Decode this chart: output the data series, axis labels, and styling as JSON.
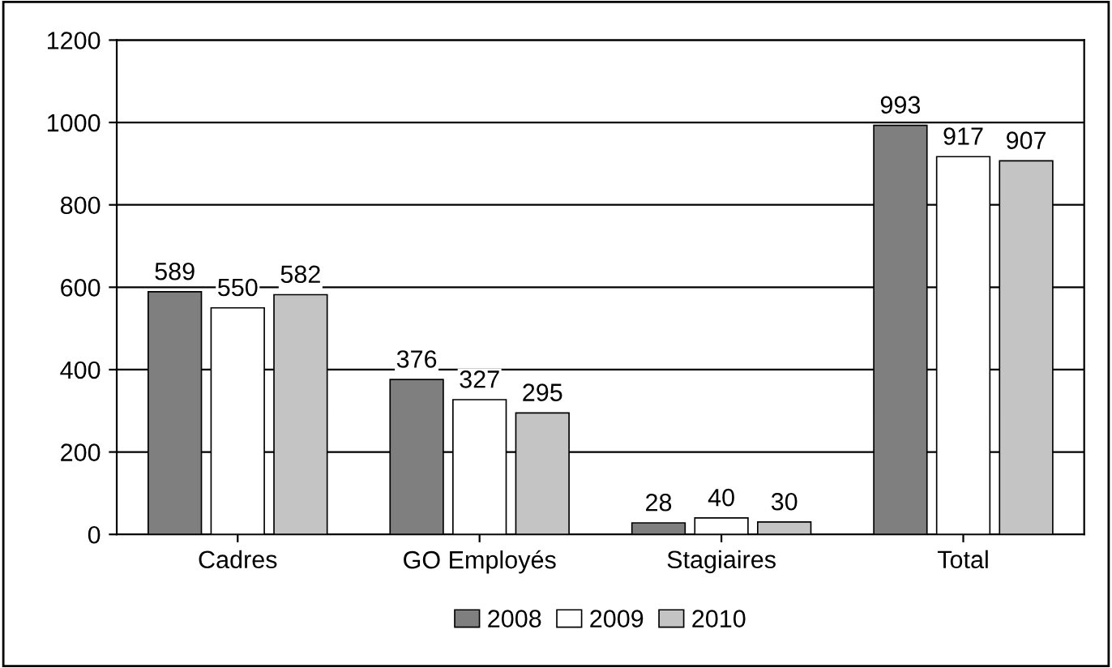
{
  "chart_data": {
    "type": "bar",
    "categories": [
      "Cadres",
      "GO Employés",
      "Stagiaires",
      "Total"
    ],
    "series": [
      {
        "name": "2008",
        "color": "#7f7f7f",
        "values": [
          589,
          376,
          28,
          993
        ]
      },
      {
        "name": "2009",
        "color": "#ffffff",
        "values": [
          550,
          327,
          40,
          917
        ]
      },
      {
        "name": "2010",
        "color": "#c4c4c4",
        "values": [
          582,
          295,
          30,
          907
        ]
      }
    ],
    "ylim": [
      0,
      1200
    ],
    "yticks": [
      0,
      200,
      400,
      600,
      800,
      1000,
      1200
    ],
    "grid": "y",
    "legend": "bottom",
    "data_labels": true
  }
}
